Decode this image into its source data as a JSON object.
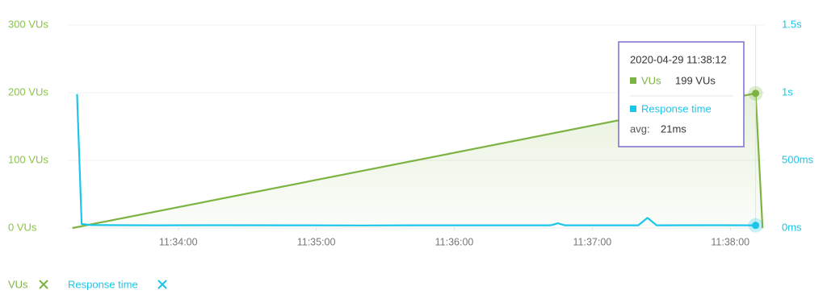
{
  "chart_data": {
    "type": "line",
    "xlim": [
      "11:33:12",
      "11:38:15"
    ],
    "xticks": [
      "11:34:00",
      "11:35:00",
      "11:36:00",
      "11:37:00",
      "11:38:00"
    ],
    "ylim": [
      0,
      300
    ],
    "yticks": [
      {
        "value": 0,
        "label": "0 VUs"
      },
      {
        "value": 100,
        "label": "100 VUs"
      },
      {
        "value": 200,
        "label": "200 VUs"
      },
      {
        "value": 300,
        "label": "300 VUs"
      }
    ],
    "y2lim": [
      0,
      1.5
    ],
    "y2ticks": [
      {
        "value": 0,
        "label": "0ms"
      },
      {
        "value": 0.5,
        "label": "500ms"
      },
      {
        "value": 1,
        "label": "1s"
      },
      {
        "value": 1.5,
        "label": "1.5s"
      }
    ],
    "grid": true,
    "series": [
      {
        "name": "VUs",
        "color": "#7cb342",
        "area": true,
        "x": [
          "11:33:14",
          "11:38:11",
          "11:38:14"
        ],
        "values": [
          0,
          199,
          0
        ],
        "value_labels": [
          null,
          "199 VUs",
          null
        ]
      },
      {
        "name": "Response time",
        "color": "#1cc6ea",
        "axis": "y2",
        "x": [
          "11:33:16",
          "11:33:18",
          "11:33:22",
          "11:33:50",
          "11:34:20",
          "11:34:50",
          "11:35:20",
          "11:35:50",
          "11:36:20",
          "11:36:42",
          "11:36:45",
          "11:36:48",
          "11:37:20",
          "11:37:24",
          "11:37:28",
          "11:37:50",
          "11:38:11"
        ],
        "values": [
          0.99,
          0.03,
          0.022,
          0.02,
          0.021,
          0.02,
          0.019,
          0.02,
          0.02,
          0.02,
          0.035,
          0.02,
          0.02,
          0.075,
          0.02,
          0.021,
          0.02
        ]
      }
    ],
    "tooltip": {
      "title": "2020-04-29 11:38:12",
      "stat_label": "avg:",
      "stat_value": "21ms"
    }
  }
}
